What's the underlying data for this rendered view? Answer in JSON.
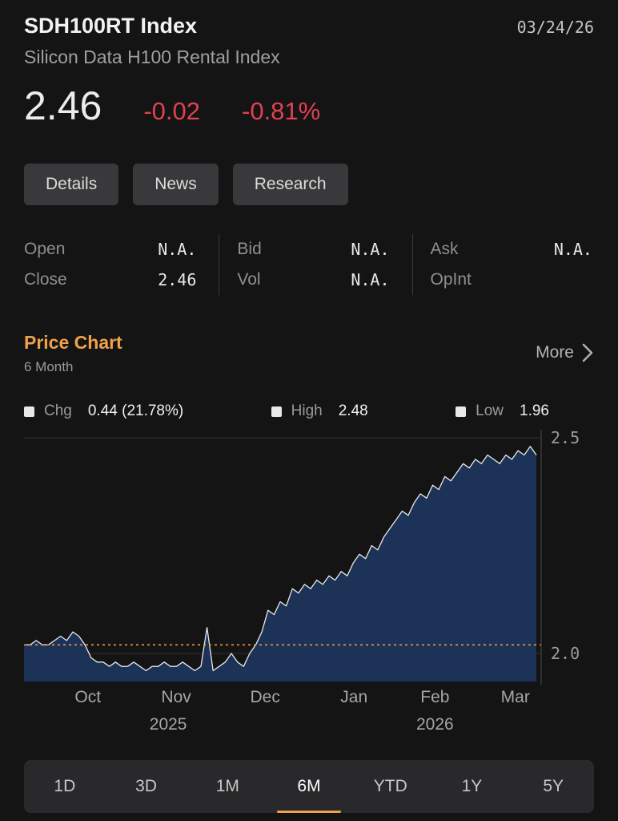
{
  "colors": {
    "background": "#141414",
    "text_primary": "#ededed",
    "text_secondary": "#9a9a9a",
    "negative_red": "#e14150",
    "accent_orange": "#f0a14b",
    "chart_fill": "#1c3257",
    "chart_line": "#e9e9e9",
    "button_bg": "#39393b",
    "tabbar_bg": "#29292b"
  },
  "header": {
    "title": "SDH100RT Index",
    "date": "03/24/26",
    "subtitle": "Silicon Data H100 Rental Index",
    "price": "2.46",
    "change": "-0.02",
    "change_pct": "-0.81%"
  },
  "nav": [
    {
      "label": "Details"
    },
    {
      "label": "News"
    },
    {
      "label": "Research"
    }
  ],
  "stats": {
    "columns": [
      {
        "rows": [
          {
            "label": "Open",
            "value": "N.A."
          },
          {
            "label": "Close",
            "value": "2.46"
          }
        ]
      },
      {
        "rows": [
          {
            "label": "Bid",
            "value": "N.A."
          },
          {
            "label": "Vol",
            "value": "N.A."
          }
        ]
      },
      {
        "rows": [
          {
            "label": "Ask",
            "value": "N.A."
          },
          {
            "label": "OpInt",
            "value": ""
          }
        ]
      }
    ]
  },
  "section": {
    "title": "Price Chart",
    "period": "6 Month",
    "more_label": "More"
  },
  "legend": [
    {
      "label": "Chg",
      "value": "0.44 (21.78%)"
    },
    {
      "label": "High",
      "value": "2.48"
    },
    {
      "label": "Low",
      "value": "1.96"
    }
  ],
  "chart_data": {
    "type": "area",
    "title": "SDH100RT Index 6 Month Price Chart",
    "x_labels": [
      "Oct",
      "Nov",
      "Dec",
      "Jan",
      "Feb",
      "Mar"
    ],
    "year_labels": [
      "2025",
      "2026"
    ],
    "y_ticks": [
      {
        "value": 2.5,
        "label": "2.5"
      },
      {
        "value": 2.0,
        "label": "2.0"
      }
    ],
    "ylim": [
      1.935,
      2.5
    ],
    "reference_value": 2.02,
    "open": 2.02,
    "close": 2.46,
    "high": 2.48,
    "low": 1.96,
    "change": 0.44,
    "change_pct": 21.78,
    "values": [
      2.02,
      2.02,
      2.03,
      2.02,
      2.02,
      2.03,
      2.04,
      2.03,
      2.05,
      2.04,
      2.02,
      1.99,
      1.98,
      1.98,
      1.97,
      1.98,
      1.97,
      1.97,
      1.98,
      1.97,
      1.96,
      1.97,
      1.97,
      1.98,
      1.97,
      1.97,
      1.98,
      1.97,
      1.96,
      1.97,
      2.06,
      1.96,
      1.97,
      1.98,
      2.0,
      1.98,
      1.97,
      2.0,
      2.02,
      2.05,
      2.1,
      2.09,
      2.12,
      2.11,
      2.15,
      2.14,
      2.16,
      2.15,
      2.17,
      2.16,
      2.18,
      2.17,
      2.19,
      2.18,
      2.21,
      2.23,
      2.22,
      2.25,
      2.24,
      2.27,
      2.29,
      2.31,
      2.33,
      2.32,
      2.35,
      2.37,
      2.36,
      2.39,
      2.38,
      2.41,
      2.4,
      2.42,
      2.44,
      2.43,
      2.45,
      2.44,
      2.46,
      2.45,
      2.44,
      2.46,
      2.45,
      2.47,
      2.46,
      2.48,
      2.46
    ]
  },
  "range_tabs": [
    {
      "label": "1D",
      "active": false
    },
    {
      "label": "3D",
      "active": false
    },
    {
      "label": "1M",
      "active": false
    },
    {
      "label": "6M",
      "active": true
    },
    {
      "label": "YTD",
      "active": false
    },
    {
      "label": "1Y",
      "active": false
    },
    {
      "label": "5Y",
      "active": false
    }
  ]
}
